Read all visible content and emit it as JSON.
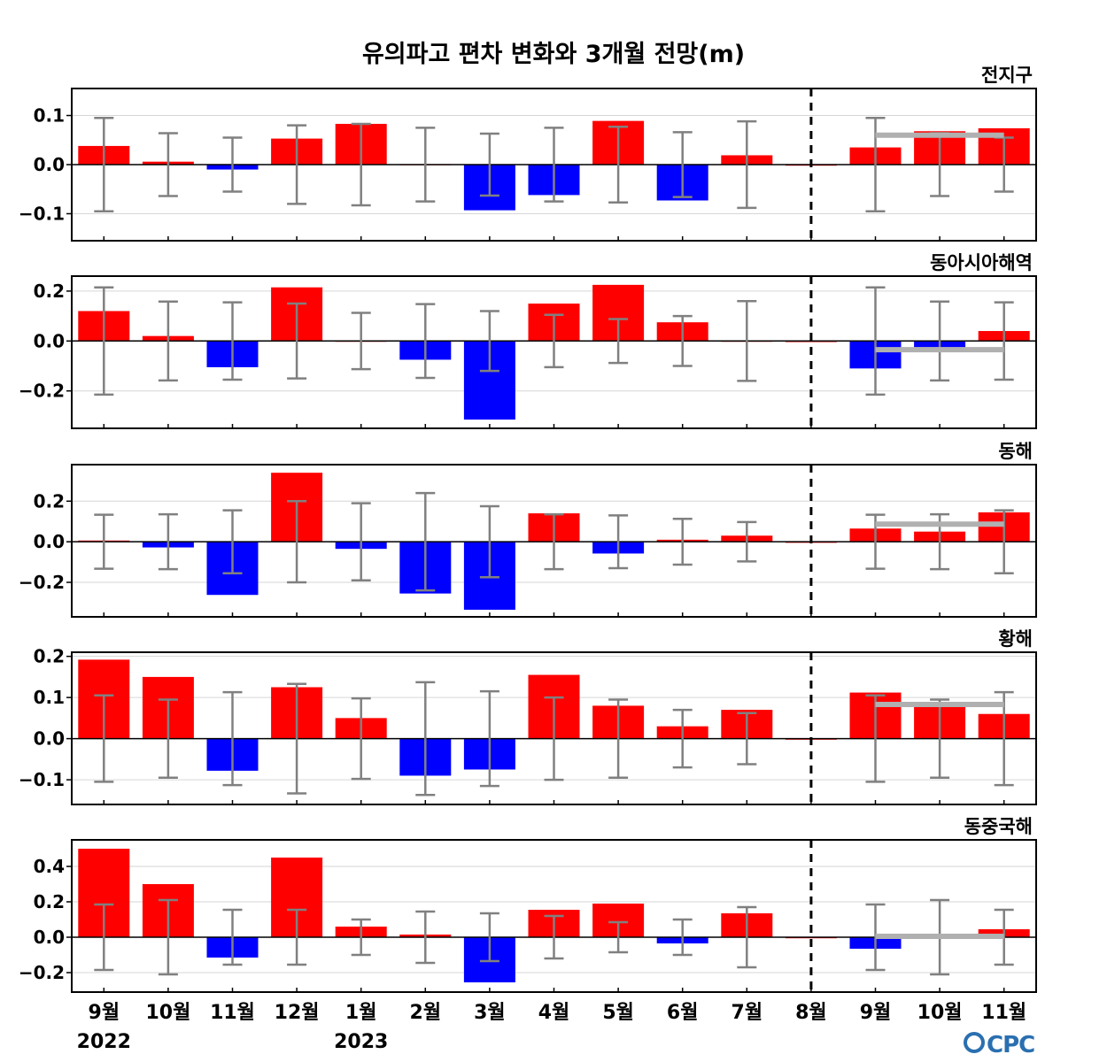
{
  "chart_data": {
    "type": "bar",
    "title": "유의파고 편차 변화와 3개월 전망(m)",
    "categories": [
      "9월",
      "10월",
      "11월",
      "12월",
      "1월",
      "2월",
      "3월",
      "4월",
      "5월",
      "6월",
      "7월",
      "8월",
      "9월",
      "10월",
      "11월"
    ],
    "year_labels": [
      {
        "index": 0,
        "label": "2022"
      },
      {
        "index": 4,
        "label": "2023"
      }
    ],
    "forecast_divider_after_index": 11,
    "colors": {
      "positive": "#ff0000",
      "negative": "#0000ff",
      "errorbar": "#808080",
      "forecast_line": "#b0b0b0"
    },
    "panels": [
      {
        "name": "전지구",
        "ylim": [
          -0.155,
          0.155
        ],
        "yticks": [
          -0.1,
          0.0,
          0.1
        ],
        "ytick_labels": [
          "−0.1",
          "0.0",
          "0.1"
        ],
        "values": [
          0.038,
          0.006,
          -0.01,
          0.053,
          0.083,
          0.001,
          -0.093,
          -0.062,
          0.089,
          -0.073,
          0.019,
          0.0,
          0.035,
          0.068,
          0.074
        ],
        "errorbars": [
          0.095,
          0.064,
          0.055,
          0.08,
          0.083,
          0.075,
          0.063,
          0.075,
          0.077,
          0.066,
          0.088,
          null,
          0.095,
          0.064,
          0.055
        ],
        "forecast_value": 0.06
      },
      {
        "name": "동아시아해역",
        "ylim": [
          -0.35,
          0.26
        ],
        "yticks": [
          -0.2,
          0.0,
          0.2
        ],
        "ytick_labels": [
          "−0.2",
          "0.0",
          "0.2"
        ],
        "values": [
          0.12,
          0.02,
          -0.105,
          0.215,
          0.001,
          -0.075,
          -0.315,
          0.15,
          0.225,
          0.075,
          0.001,
          0.0,
          -0.11,
          -0.025,
          0.04
        ],
        "errorbars": [
          0.215,
          0.158,
          0.155,
          0.15,
          0.113,
          0.148,
          0.12,
          0.105,
          0.088,
          0.1,
          0.16,
          null,
          0.215,
          0.158,
          0.155
        ],
        "forecast_value": -0.035
      },
      {
        "name": "동해",
        "ylim": [
          -0.37,
          0.38
        ],
        "yticks": [
          -0.2,
          0.0,
          0.2
        ],
        "ytick_labels": [
          "−0.2",
          "0.0",
          "0.2"
        ],
        "values": [
          0.006,
          -0.028,
          -0.262,
          0.34,
          -0.035,
          -0.255,
          -0.335,
          0.14,
          -0.058,
          0.01,
          0.03,
          0.0,
          0.065,
          0.05,
          0.145
        ],
        "errorbars": [
          0.133,
          0.135,
          0.155,
          0.2,
          0.19,
          0.24,
          0.175,
          0.135,
          0.13,
          0.113,
          0.097,
          null,
          0.133,
          0.135,
          0.155
        ],
        "forecast_value": 0.087
      },
      {
        "name": "황해",
        "ylim": [
          -0.16,
          0.21
        ],
        "yticks": [
          -0.1,
          0.0,
          0.1,
          0.2
        ],
        "ytick_labels": [
          "−0.1",
          "0.0",
          "0.1",
          "0.2"
        ],
        "values": [
          0.192,
          0.15,
          -0.078,
          0.125,
          0.05,
          -0.09,
          -0.075,
          0.155,
          0.08,
          0.03,
          0.07,
          0.0,
          0.112,
          0.08,
          0.06
        ],
        "errorbars": [
          0.105,
          0.095,
          0.113,
          0.133,
          0.098,
          0.137,
          0.115,
          0.1,
          0.095,
          0.07,
          0.062,
          null,
          0.105,
          0.095,
          0.113
        ],
        "forecast_value": 0.083
      },
      {
        "name": "동중국해",
        "ylim": [
          -0.31,
          0.55
        ],
        "yticks": [
          -0.2,
          0.0,
          0.2,
          0.4
        ],
        "ytick_labels": [
          "−0.2",
          "0.0",
          "0.2",
          "0.4"
        ],
        "values": [
          0.5,
          0.3,
          -0.115,
          0.45,
          0.06,
          0.015,
          -0.255,
          0.155,
          0.19,
          -0.035,
          0.135,
          0.0,
          -0.065,
          0.02,
          0.045
        ],
        "errorbars": [
          0.185,
          0.21,
          0.155,
          0.155,
          0.1,
          0.145,
          0.135,
          0.12,
          0.085,
          0.1,
          0.17,
          null,
          0.185,
          0.21,
          0.155
        ],
        "forecast_value": 0.005
      }
    ]
  },
  "logo_text": "CPC"
}
